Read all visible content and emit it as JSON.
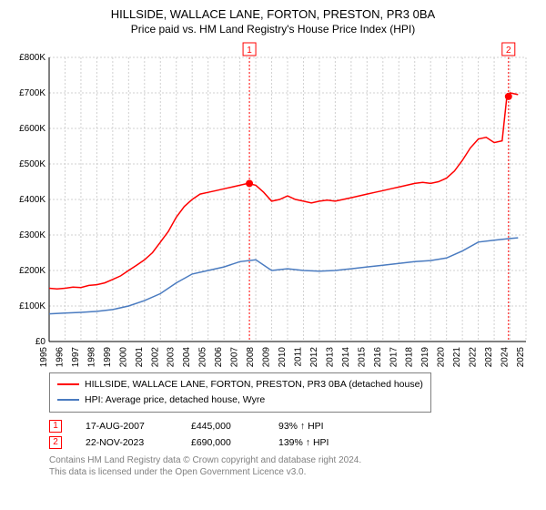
{
  "chart": {
    "title": "HILLSIDE, WALLACE LANE, FORTON, PRESTON, PR3 0BA",
    "subtitle": "Price paid vs. HM Land Registry's House Price Index (HPI)",
    "background_color": "#ffffff",
    "grid_color": "#d0d0d0",
    "axis_color": "#000000",
    "y_axis": {
      "min": 0,
      "max": 800000,
      "step": 100000,
      "ticks": [
        "£0",
        "£100K",
        "£200K",
        "£300K",
        "£400K",
        "£500K",
        "£600K",
        "£700K",
        "£800K"
      ]
    },
    "x_axis": {
      "min": 1995,
      "max": 2025,
      "step": 1,
      "ticks": [
        "1995",
        "1996",
        "1997",
        "1998",
        "1999",
        "2000",
        "2001",
        "2002",
        "2003",
        "2004",
        "2005",
        "2006",
        "2007",
        "2008",
        "2009",
        "2010",
        "2011",
        "2012",
        "2013",
        "2014",
        "2015",
        "2016",
        "2017",
        "2018",
        "2019",
        "2020",
        "2021",
        "2022",
        "2023",
        "2024",
        "2025"
      ]
    },
    "series": [
      {
        "name": "HILLSIDE, WALLACE LANE, FORTON, PRESTON, PR3 0BA (detached house)",
        "color": "#ff0000",
        "line_width": 1.5,
        "data": [
          [
            1995,
            150000
          ],
          [
            1995.5,
            148000
          ],
          [
            1996,
            150000
          ],
          [
            1996.5,
            153000
          ],
          [
            1997,
            152000
          ],
          [
            1997.5,
            158000
          ],
          [
            1998,
            160000
          ],
          [
            1998.5,
            165000
          ],
          [
            1999,
            175000
          ],
          [
            1999.5,
            185000
          ],
          [
            2000,
            200000
          ],
          [
            2000.5,
            215000
          ],
          [
            2001,
            230000
          ],
          [
            2001.5,
            250000
          ],
          [
            2002,
            280000
          ],
          [
            2002.5,
            310000
          ],
          [
            2003,
            350000
          ],
          [
            2003.5,
            380000
          ],
          [
            2004,
            400000
          ],
          [
            2004.5,
            415000
          ],
          [
            2005,
            420000
          ],
          [
            2005.5,
            425000
          ],
          [
            2006,
            430000
          ],
          [
            2006.5,
            435000
          ],
          [
            2007,
            440000
          ],
          [
            2007.5,
            445000
          ],
          [
            2008,
            440000
          ],
          [
            2008.5,
            420000
          ],
          [
            2009,
            395000
          ],
          [
            2009.5,
            400000
          ],
          [
            2010,
            410000
          ],
          [
            2010.5,
            400000
          ],
          [
            2011,
            395000
          ],
          [
            2011.5,
            390000
          ],
          [
            2012,
            395000
          ],
          [
            2012.5,
            398000
          ],
          [
            2013,
            395000
          ],
          [
            2013.5,
            400000
          ],
          [
            2014,
            405000
          ],
          [
            2014.5,
            410000
          ],
          [
            2015,
            415000
          ],
          [
            2015.5,
            420000
          ],
          [
            2016,
            425000
          ],
          [
            2016.5,
            430000
          ],
          [
            2017,
            435000
          ],
          [
            2017.5,
            440000
          ],
          [
            2018,
            445000
          ],
          [
            2018.5,
            448000
          ],
          [
            2019,
            445000
          ],
          [
            2019.5,
            450000
          ],
          [
            2020,
            460000
          ],
          [
            2020.5,
            480000
          ],
          [
            2021,
            510000
          ],
          [
            2021.5,
            545000
          ],
          [
            2022,
            570000
          ],
          [
            2022.5,
            575000
          ],
          [
            2023,
            560000
          ],
          [
            2023.5,
            565000
          ],
          [
            2023.8,
            690000
          ],
          [
            2024,
            700000
          ],
          [
            2024.5,
            695000
          ]
        ]
      },
      {
        "name": "HPI: Average price, detached house, Wyre",
        "color": "#4a7bc0",
        "line_width": 1.5,
        "data": [
          [
            1995,
            78000
          ],
          [
            1996,
            80000
          ],
          [
            1997,
            82000
          ],
          [
            1998,
            85000
          ],
          [
            1999,
            90000
          ],
          [
            2000,
            100000
          ],
          [
            2001,
            115000
          ],
          [
            2002,
            135000
          ],
          [
            2003,
            165000
          ],
          [
            2004,
            190000
          ],
          [
            2005,
            200000
          ],
          [
            2006,
            210000
          ],
          [
            2007,
            225000
          ],
          [
            2008,
            230000
          ],
          [
            2009,
            200000
          ],
          [
            2010,
            205000
          ],
          [
            2011,
            200000
          ],
          [
            2012,
            198000
          ],
          [
            2013,
            200000
          ],
          [
            2014,
            205000
          ],
          [
            2015,
            210000
          ],
          [
            2016,
            215000
          ],
          [
            2017,
            220000
          ],
          [
            2018,
            225000
          ],
          [
            2019,
            228000
          ],
          [
            2020,
            235000
          ],
          [
            2021,
            255000
          ],
          [
            2022,
            280000
          ],
          [
            2023,
            285000
          ],
          [
            2024,
            290000
          ],
          [
            2024.5,
            292000
          ]
        ]
      }
    ],
    "markers": [
      {
        "num": "1",
        "year": 2007.6,
        "value": 445000
      },
      {
        "num": "2",
        "year": 2023.9,
        "value": 690000
      }
    ],
    "legend": [
      {
        "color": "#ff0000",
        "label": "HILLSIDE, WALLACE LANE, FORTON, PRESTON, PR3 0BA (detached house)"
      },
      {
        "color": "#4a7bc0",
        "label": "HPI: Average price, detached house, Wyre"
      }
    ]
  },
  "data_rows": [
    {
      "num": "1",
      "date": "17-AUG-2007",
      "price": "£445,000",
      "pct": "93% ↑ HPI"
    },
    {
      "num": "2",
      "date": "22-NOV-2023",
      "price": "£690,000",
      "pct": "139% ↑ HPI"
    }
  ],
  "footer": {
    "line1": "Contains HM Land Registry data © Crown copyright and database right 2024.",
    "line2": "This data is licensed under the Open Government Licence v3.0."
  }
}
